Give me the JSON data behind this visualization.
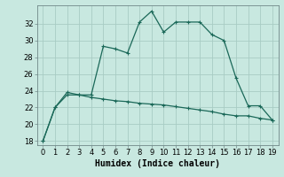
{
  "xlabel": "Humidex (Indice chaleur)",
  "background_color": "#c8e8e0",
  "grid_color": "#a8ccc4",
  "line_color": "#1a6858",
  "xlim": [
    -0.5,
    19.5
  ],
  "ylim": [
    17.5,
    34.2
  ],
  "yticks": [
    18,
    20,
    22,
    24,
    26,
    28,
    30,
    32
  ],
  "xticks": [
    0,
    1,
    2,
    3,
    4,
    5,
    6,
    7,
    8,
    9,
    10,
    11,
    12,
    13,
    14,
    15,
    16,
    17,
    18,
    19
  ],
  "line1_x": [
    0,
    1,
    2,
    3,
    4,
    5,
    6,
    7,
    8,
    9,
    10,
    11,
    12,
    13,
    14,
    15,
    16,
    17,
    18,
    19
  ],
  "line1_y": [
    18.0,
    22.0,
    23.5,
    23.5,
    23.5,
    29.3,
    29.0,
    28.5,
    32.2,
    33.5,
    31.0,
    32.2,
    32.2,
    32.2,
    30.7,
    30.0,
    25.5,
    22.2,
    22.2,
    20.5
  ],
  "line2_x": [
    0,
    1,
    2,
    3,
    4,
    5,
    6,
    7,
    8,
    9,
    10,
    11,
    12,
    13,
    14,
    15,
    16,
    17,
    18,
    19
  ],
  "line2_y": [
    18.0,
    22.0,
    23.8,
    23.5,
    23.2,
    23.0,
    22.8,
    22.7,
    22.5,
    22.4,
    22.3,
    22.1,
    21.9,
    21.7,
    21.5,
    21.2,
    21.0,
    21.0,
    20.7,
    20.5
  ],
  "marker": "+",
  "markersize": 3,
  "markeredgewidth": 0.8,
  "linewidth": 0.9,
  "label_fontsize": 7,
  "tick_fontsize": 6
}
